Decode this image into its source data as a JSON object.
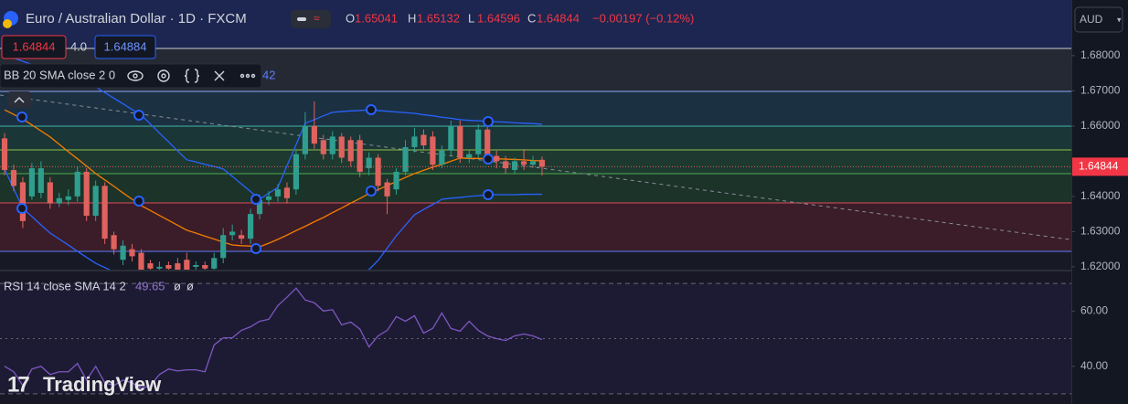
{
  "chart_data": {
    "type": "candlestick",
    "title": "Euro / Australian Dollar · 1D · FXCM",
    "ohlc_labels": [
      "O",
      "H",
      "L",
      "C"
    ],
    "change": "−0.00197 (−0.12%)",
    "spread": "4.0",
    "buy_price": 1.64884,
    "currency": "AUD",
    "bb_label": "BB 20 SMA close 2 0",
    "bb_value_fragment": "42",
    "brand": "TradingView",
    "up_color": "#2f9e8f",
    "down_color": "#e0625f",
    "ylim": [
      1.6192,
      1.6958
    ],
    "yticks": [
      {
        "value": 1.62,
        "label": "1.62000"
      },
      {
        "value": 1.63,
        "label": "1.63000"
      },
      {
        "value": 1.64,
        "label": "1.64000"
      },
      {
        "value": 1.66,
        "label": "1.66000"
      },
      {
        "value": 1.67,
        "label": "1.67000"
      },
      {
        "value": 1.68,
        "label": "1.68000"
      }
    ],
    "open": [
      1.6565,
      1.6475,
      1.644,
      1.64,
      1.641,
      1.644,
      1.638,
      1.639,
      1.64,
      1.647,
      1.6345,
      1.643,
      1.629,
      1.622,
      1.625,
      1.624,
      1.621,
      1.6195,
      1.6205,
      1.621,
      1.622,
      1.62,
      1.6205,
      1.6195,
      1.6225,
      1.629,
      1.629,
      1.628,
      1.635,
      1.639,
      1.64,
      1.6425,
      1.642,
      1.652,
      1.66,
      1.656,
      1.652,
      1.657,
      1.656,
      1.656,
      1.648,
      1.651,
      1.644,
      1.642,
      1.647,
      1.654,
      1.6575,
      1.657,
      1.649,
      1.653,
      1.66,
      1.651,
      1.652,
      1.659,
      1.6515,
      1.65,
      1.6475,
      1.65,
      1.649,
      1.65041
    ],
    "high": [
      1.658,
      1.649,
      1.6455,
      1.6495,
      1.65,
      1.6455,
      1.641,
      1.642,
      1.6485,
      1.648,
      1.6445,
      1.644,
      1.63,
      1.6275,
      1.6265,
      1.625,
      1.622,
      1.6215,
      1.6215,
      1.6225,
      1.624,
      1.6215,
      1.6215,
      1.624,
      1.631,
      1.632,
      1.6305,
      1.6365,
      1.6405,
      1.6415,
      1.6435,
      1.644,
      1.653,
      1.664,
      1.667,
      1.6575,
      1.6585,
      1.658,
      1.657,
      1.6575,
      1.6525,
      1.652,
      1.645,
      1.648,
      1.656,
      1.6595,
      1.659,
      1.6585,
      1.6545,
      1.6615,
      1.6615,
      1.653,
      1.6605,
      1.66,
      1.653,
      1.6515,
      1.651,
      1.6535,
      1.6515,
      1.65132
    ],
    "low": [
      1.646,
      1.6415,
      1.631,
      1.639,
      1.6395,
      1.6365,
      1.637,
      1.6375,
      1.6385,
      1.633,
      1.633,
      1.6265,
      1.6235,
      1.6205,
      1.6215,
      1.617,
      1.618,
      1.618,
      1.618,
      1.6175,
      1.6175,
      1.6185,
      1.618,
      1.618,
      1.621,
      1.6275,
      1.6265,
      1.6265,
      1.6335,
      1.6375,
      1.6385,
      1.638,
      1.6405,
      1.6505,
      1.6535,
      1.6505,
      1.6505,
      1.6495,
      1.6485,
      1.6455,
      1.646,
      1.6415,
      1.635,
      1.6405,
      1.646,
      1.6525,
      1.653,
      1.6475,
      1.648,
      1.6515,
      1.6495,
      1.6495,
      1.651,
      1.6495,
      1.648,
      1.6465,
      1.6465,
      1.6475,
      1.648,
      1.64596
    ],
    "close": [
      1.6475,
      1.643,
      1.633,
      1.648,
      1.648,
      1.638,
      1.6395,
      1.64,
      1.647,
      1.6345,
      1.643,
      1.628,
      1.625,
      1.626,
      1.623,
      1.619,
      1.6195,
      1.62,
      1.6195,
      1.619,
      1.619,
      1.6205,
      1.6195,
      1.6225,
      1.629,
      1.63,
      1.628,
      1.635,
      1.639,
      1.64,
      1.642,
      1.6395,
      1.652,
      1.66,
      1.655,
      1.652,
      1.657,
      1.651,
      1.65,
      1.647,
      1.651,
      1.643,
      1.64,
      1.647,
      1.654,
      1.657,
      1.6545,
      1.649,
      1.653,
      1.66,
      1.651,
      1.652,
      1.659,
      1.651,
      1.65,
      1.648,
      1.65,
      1.649,
      1.65,
      1.64844
    ],
    "bollinger": {
      "band_color": "#2962ff",
      "middle_color": "#f57c00",
      "upper": [
        1.6802,
        1.6793,
        1.6784,
        1.6775,
        1.6765,
        1.6756,
        1.6747,
        1.6738,
        1.6729,
        1.672,
        1.6711,
        1.6695,
        1.6679,
        1.6663,
        1.6647,
        1.6631,
        1.6606,
        1.658,
        1.6555,
        1.6529,
        1.6504,
        1.6498,
        1.6491,
        1.6485,
        1.6478,
        1.6457,
        1.6435,
        1.6414,
        1.6392,
        1.6409,
        1.6426,
        1.6487,
        1.6547,
        1.6608,
        1.6618,
        1.6629,
        1.6639,
        1.6641,
        1.6643,
        1.6644,
        1.6646,
        1.6644,
        1.6642,
        1.664,
        1.6638,
        1.6636,
        1.6632,
        1.6629,
        1.6625,
        1.6622,
        1.6618,
        1.6616,
        1.6615,
        1.6613,
        1.6612,
        1.6611,
        1.6609,
        1.6608,
        1.6607,
        1.6605
      ],
      "middle": [
        1.6646,
        1.6633,
        1.662,
        1.6603,
        1.6586,
        1.6569,
        1.6548,
        1.6527,
        1.6507,
        1.6486,
        1.6465,
        1.6447,
        1.6429,
        1.641,
        1.6392,
        1.6374,
        1.636,
        1.6346,
        1.6332,
        1.6318,
        1.6304,
        1.6296,
        1.6287,
        1.6279,
        1.627,
        1.6262,
        1.626,
        1.6259,
        1.6257,
        1.6267,
        1.6278,
        1.629,
        1.6303,
        1.6315,
        1.6328,
        1.634,
        1.6354,
        1.6367,
        1.6381,
        1.6394,
        1.6408,
        1.6419,
        1.6431,
        1.6442,
        1.6454,
        1.6465,
        1.6474,
        1.6483,
        1.6491,
        1.65,
        1.6509,
        1.6508,
        1.6508,
        1.6507,
        1.6507,
        1.6506,
        1.6505,
        1.6504,
        1.6502,
        1.6501
      ],
      "lower": [
        1.6478,
        1.6422,
        1.6366,
        1.6343,
        1.6319,
        1.6296,
        1.6279,
        1.6262,
        1.6244,
        1.6227,
        1.621,
        1.6198,
        1.6186,
        1.6174,
        1.6162,
        1.615,
        1.6142,
        1.6134,
        1.6126,
        1.6118,
        1.611,
        1.6108,
        1.6106,
        1.6104,
        1.6102,
        1.61,
        1.6102,
        1.6104,
        1.6106,
        1.6108,
        1.611,
        1.6112,
        1.6114,
        1.6116,
        1.6118,
        1.612,
        1.6135,
        1.615,
        1.6165,
        1.618,
        1.6192,
        1.6218,
        1.6253,
        1.6288,
        1.6318,
        1.6348,
        1.6363,
        1.6377,
        1.6392,
        1.6395,
        1.6397,
        1.64,
        1.6402,
        1.6405,
        1.6405,
        1.6405,
        1.6405,
        1.6406,
        1.6406,
        1.6406
      ]
    },
    "rsi": {
      "label": "RSI 14 close SMA 14 2",
      "extra_labels": [
        "ø",
        "ø"
      ],
      "color": "#7e57c2",
      "ylim": [
        26.33,
        74.33
      ],
      "yticks": [
        {
          "value": 40,
          "label": "40.00"
        },
        {
          "value": 60,
          "label": "60.00"
        }
      ],
      "levels": [
        70,
        50,
        30
      ],
      "values": [
        40,
        38,
        33,
        39,
        40,
        37,
        38,
        38,
        41,
        35,
        40,
        34,
        33,
        35,
        34,
        32,
        33,
        37,
        39.0,
        38.3,
        38.7,
        38.7,
        38.0,
        47.7,
        50.3,
        50.3,
        53.0,
        54.3,
        56.3,
        57.0,
        62.0,
        65.0,
        68.3,
        64.0,
        63.0,
        60.0,
        60.5,
        55.0,
        56.0,
        53.5,
        47.0,
        51.0,
        53.0,
        58.0,
        56.3,
        58.3,
        52.0,
        53.7,
        59.3,
        53.7,
        52.7,
        56.3,
        53.0,
        51.0,
        50.0,
        49.3,
        51.0,
        51.7,
        51.0,
        49.65
      ]
    }
  }
}
